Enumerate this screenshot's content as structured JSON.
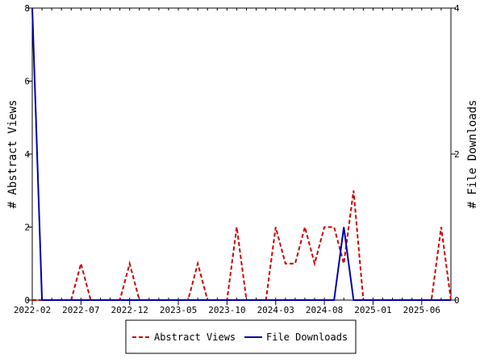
{
  "chart_data": {
    "type": "line",
    "title": "",
    "xlabel": "",
    "ylabel": "# Abstract Views",
    "y2label": "# File Downloads",
    "ylim": [
      0,
      8
    ],
    "y2lim": [
      0,
      4
    ],
    "yticks": [
      0,
      2,
      4,
      6,
      8
    ],
    "y2ticks": [
      0,
      2,
      4
    ],
    "x_tick_labels": [
      "2022-02",
      "2022-07",
      "2022-12",
      "2023-05",
      "2023-10",
      "2024-03",
      "2024-08",
      "2025-01",
      "2025-06"
    ],
    "months": [
      "2022-02",
      "2022-03",
      "2022-04",
      "2022-05",
      "2022-06",
      "2022-07",
      "2022-08",
      "2022-09",
      "2022-10",
      "2022-11",
      "2022-12",
      "2023-01",
      "2023-02",
      "2023-03",
      "2023-04",
      "2023-05",
      "2023-06",
      "2023-07",
      "2023-08",
      "2023-09",
      "2023-10",
      "2023-11",
      "2023-12",
      "2024-01",
      "2024-02",
      "2024-03",
      "2024-04",
      "2024-05",
      "2024-06",
      "2024-07",
      "2024-08",
      "2024-09",
      "2024-10",
      "2024-11",
      "2024-12",
      "2025-01",
      "2025-02",
      "2025-03",
      "2025-04",
      "2025-05",
      "2025-06",
      "2025-07",
      "2025-08",
      "2025-09"
    ],
    "grid": false,
    "legend_position": "bottom",
    "series": [
      {
        "name": "Abstract Views",
        "axis": "left",
        "color": "#cc0000",
        "dash": "dashed",
        "values": [
          0,
          0,
          0,
          0,
          0,
          1,
          0,
          0,
          0,
          0,
          1,
          0,
          0,
          0,
          0,
          0,
          0,
          1,
          0,
          0,
          0,
          2,
          0,
          0,
          0,
          2,
          1,
          1,
          2,
          1,
          2,
          2,
          1,
          3,
          0,
          0,
          0,
          0,
          0,
          0,
          0,
          0,
          2,
          0
        ]
      },
      {
        "name": "File Downloads",
        "axis": "right",
        "color": "#0000aa",
        "dash": "solid",
        "values": [
          4,
          0,
          0,
          0,
          0,
          0,
          0,
          0,
          0,
          0,
          0,
          0,
          0,
          0,
          0,
          0,
          0,
          0,
          0,
          0,
          0,
          0,
          0,
          0,
          0,
          0,
          0,
          0,
          0,
          0,
          0,
          0,
          1,
          0,
          0,
          0,
          0,
          0,
          0,
          0,
          0,
          0,
          0,
          0
        ]
      }
    ]
  }
}
